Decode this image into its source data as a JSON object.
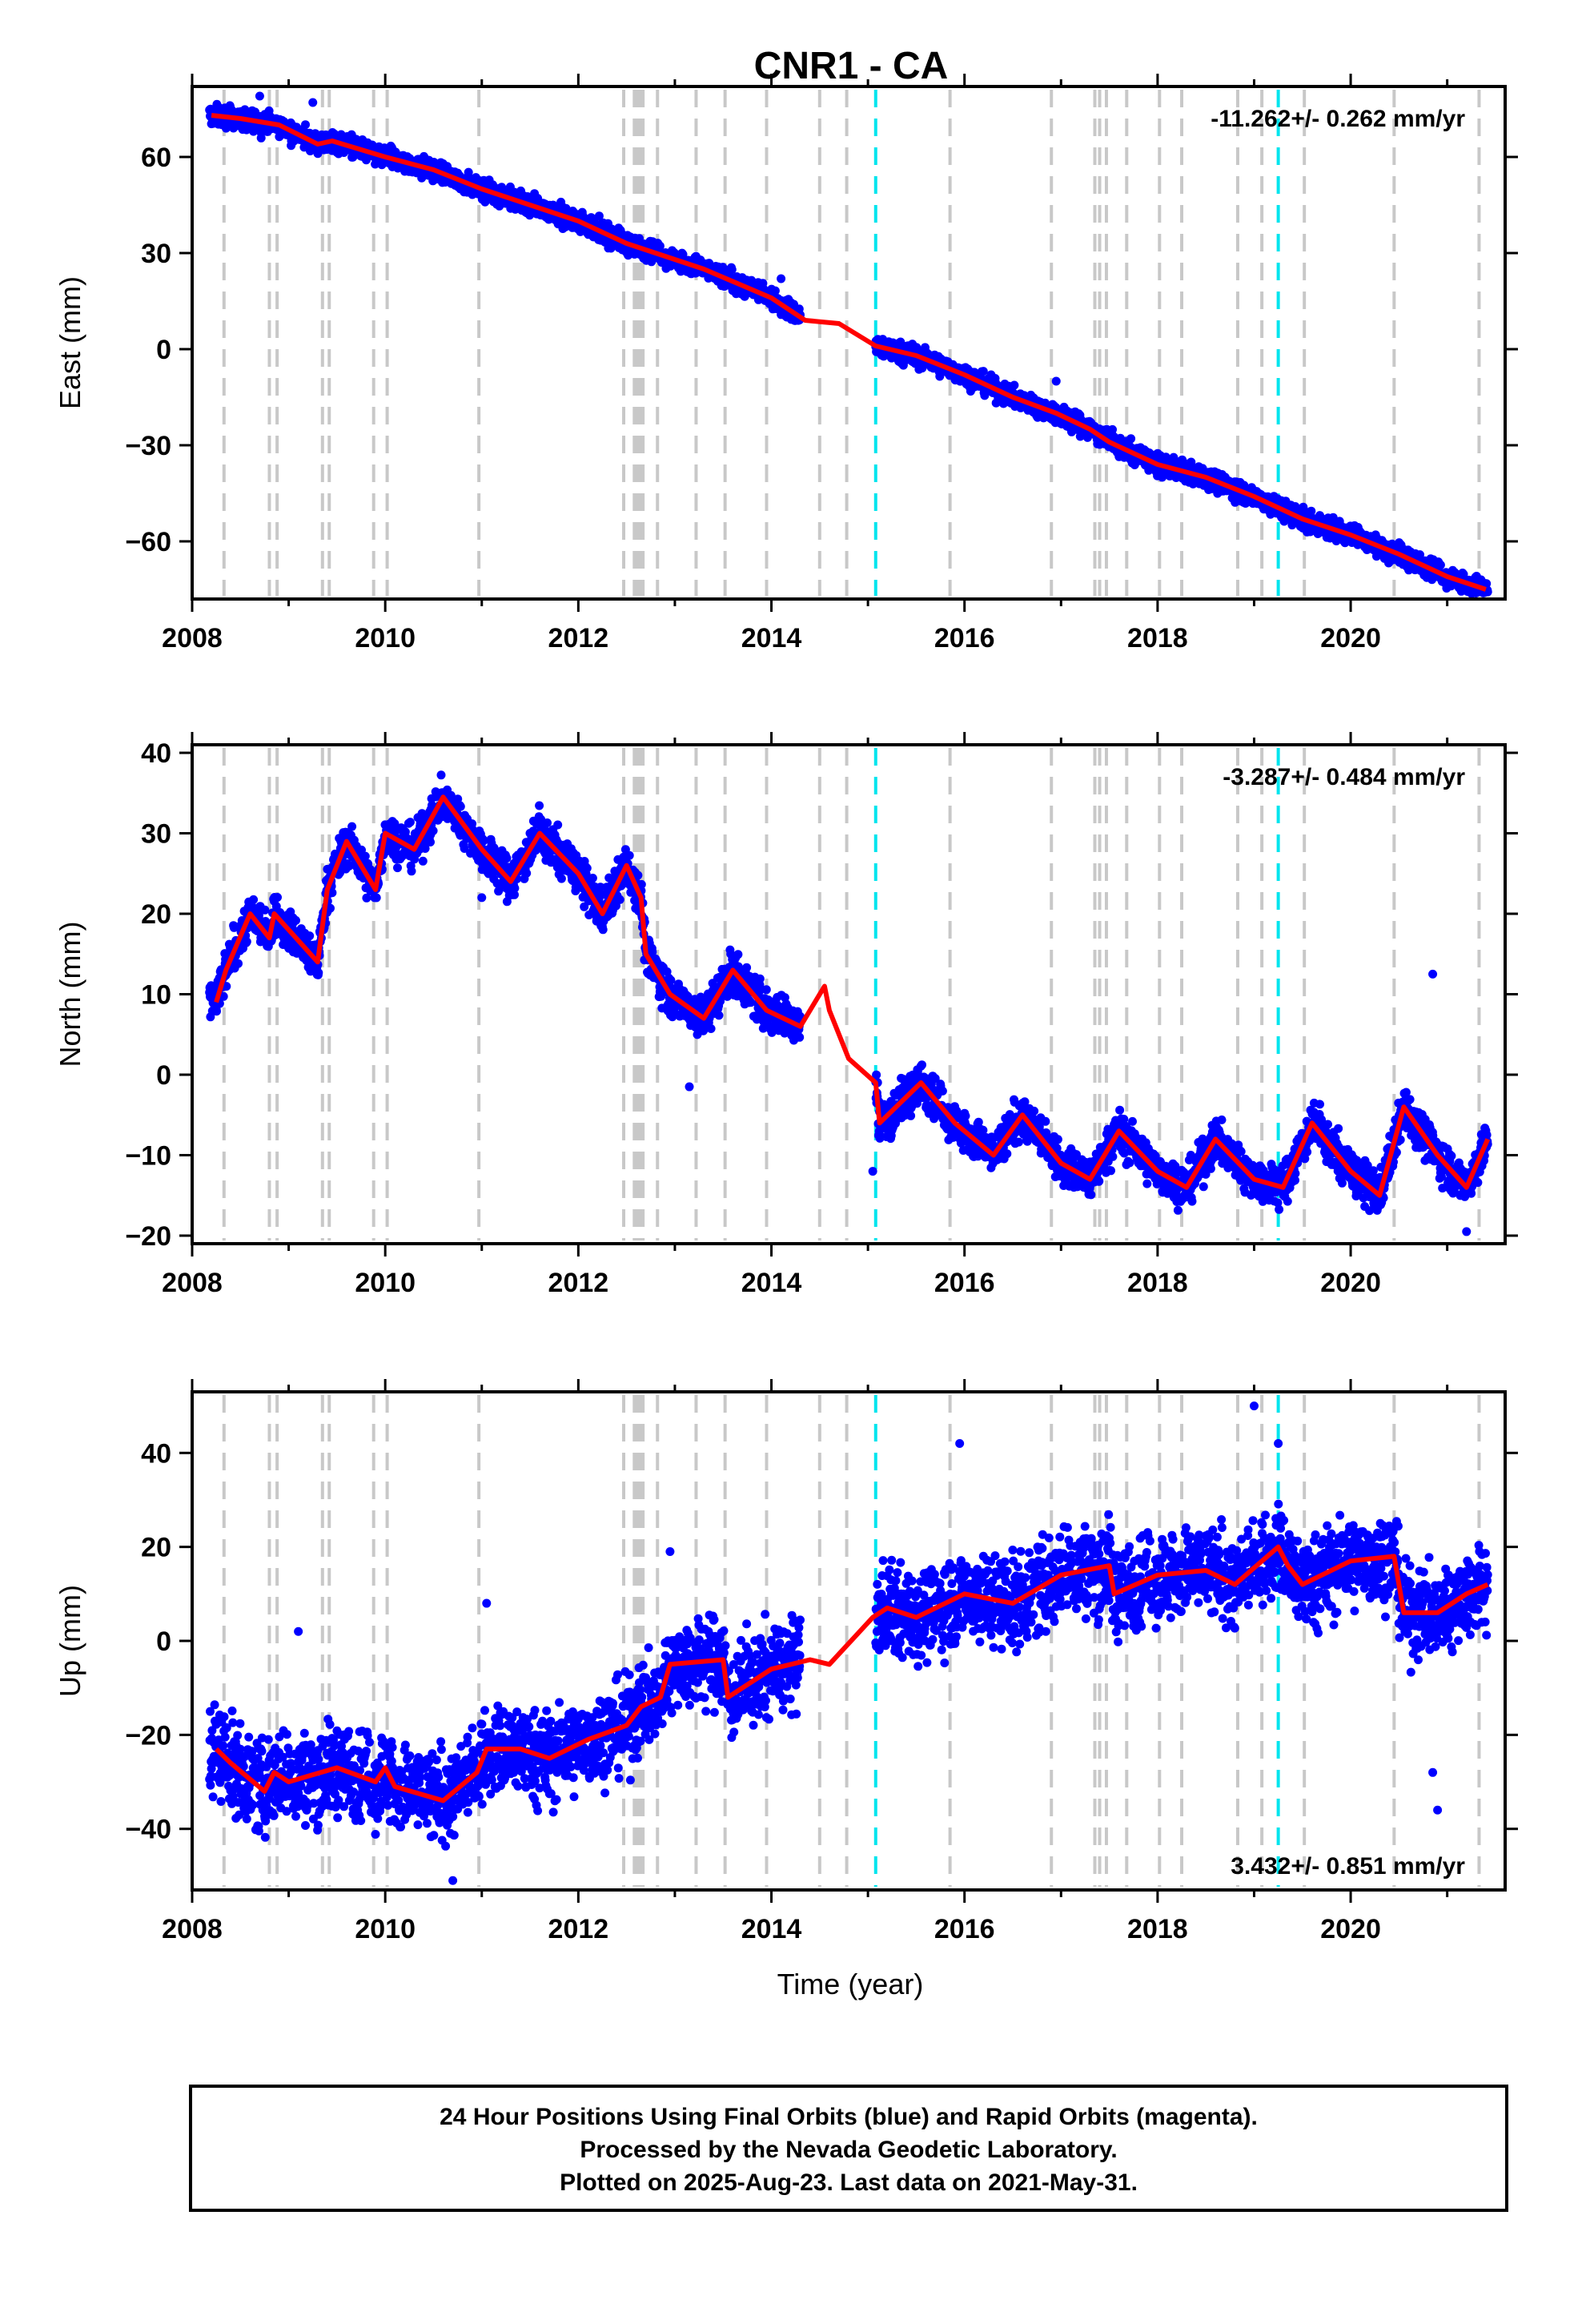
{
  "chart_data": {
    "type": "scatter",
    "title": "CNR1 - CA",
    "xlabel": "Time (year)",
    "xlim": [
      2008,
      2021.6
    ],
    "x_ticks": [
      2008,
      2010,
      2012,
      2014,
      2016,
      2018,
      2020
    ],
    "x_tick_labels": [
      "2008",
      "2010",
      "2012",
      "2014",
      "2016",
      "2018",
      "2020"
    ],
    "colors": {
      "points": "#0000ff",
      "model": "#ff0000",
      "event_line": "#c8c8c8",
      "antenna_line": "#00e5ee"
    },
    "event_lines": [
      2008.33,
      2008.8,
      2008.88,
      2009.35,
      2009.42,
      2009.88,
      2010.02,
      2010.97,
      2012.47,
      2012.58,
      2012.6,
      2012.62,
      2012.64,
      2012.67,
      2012.82,
      2013.22,
      2013.52,
      2013.95,
      2014.5,
      2014.78,
      2015.85,
      2016.9,
      2017.35,
      2017.4,
      2017.47,
      2017.68,
      2018.02,
      2018.25,
      2018.83,
      2019.08,
      2019.52,
      2020.45,
      2021.33
    ],
    "antenna_lines": [
      2015.08,
      2019.25
    ],
    "panels": [
      {
        "name": "East",
        "ylabel": "East (mm)",
        "ylim": [
          -78,
          82
        ],
        "y_ticks": [
          60,
          30,
          0,
          -30,
          -60
        ],
        "y_tick_labels": [
          "60",
          "30",
          "0",
          "−30",
          "−60"
        ],
        "rate": "-11.262+/- 0.262 mm/yr",
        "rate_position": "top-right",
        "noise": 1.6,
        "outliers": [
          [
            2008.7,
            79
          ],
          [
            2009.25,
            77
          ],
          [
            2016.95,
            -10
          ],
          [
            2014.1,
            22
          ]
        ],
        "model": [
          [
            2008.2,
            73
          ],
          [
            2008.5,
            72
          ],
          [
            2008.9,
            70
          ],
          [
            2009.3,
            64
          ],
          [
            2009.45,
            65
          ],
          [
            2010,
            60
          ],
          [
            2010.5,
            56
          ],
          [
            2011,
            50
          ],
          [
            2011.5,
            45
          ],
          [
            2012,
            40
          ],
          [
            2012.5,
            33
          ],
          [
            2012.8,
            30
          ],
          [
            2013.3,
            25
          ],
          [
            2014,
            16
          ],
          [
            2014.35,
            9
          ],
          [
            2014.7,
            8
          ],
          [
            2015.08,
            1
          ],
          [
            2015.5,
            -2
          ],
          [
            2016,
            -8
          ],
          [
            2016.5,
            -15
          ],
          [
            2016.95,
            -20
          ],
          [
            2017.3,
            -25
          ],
          [
            2017.5,
            -29
          ],
          [
            2018,
            -36
          ],
          [
            2018.5,
            -40
          ],
          [
            2019,
            -46
          ],
          [
            2019.5,
            -53
          ],
          [
            2020,
            -58
          ],
          [
            2020.5,
            -64
          ],
          [
            2021,
            -71
          ],
          [
            2021.4,
            -75
          ]
        ]
      },
      {
        "name": "North",
        "ylabel": "North (mm)",
        "ylim": [
          -21,
          41
        ],
        "y_ticks": [
          40,
          30,
          20,
          10,
          0,
          -10,
          -20
        ],
        "y_tick_labels": [
          "40",
          "30",
          "20",
          "10",
          "0",
          "−10",
          "−20"
        ],
        "rate": "-3.287+/- 0.484 mm/yr",
        "rate_position": "top-right",
        "noise": 1.3,
        "outliers": [
          [
            2020.85,
            12.5
          ],
          [
            2013.15,
            -1.5
          ],
          [
            2015.05,
            -12
          ],
          [
            2021.2,
            -19.5
          ],
          [
            2011.0,
            22
          ]
        ],
        "model": [
          [
            2008.25,
            9
          ],
          [
            2008.35,
            13
          ],
          [
            2008.6,
            20
          ],
          [
            2008.8,
            17
          ],
          [
            2008.85,
            20
          ],
          [
            2009.3,
            14
          ],
          [
            2009.4,
            23
          ],
          [
            2009.6,
            29
          ],
          [
            2009.9,
            23
          ],
          [
            2010.0,
            30
          ],
          [
            2010.3,
            28
          ],
          [
            2010.6,
            34.5
          ],
          [
            2011.0,
            28
          ],
          [
            2011.3,
            24
          ],
          [
            2011.6,
            30
          ],
          [
            2012.0,
            25
          ],
          [
            2012.25,
            20
          ],
          [
            2012.5,
            26
          ],
          [
            2012.65,
            22
          ],
          [
            2012.7,
            15
          ],
          [
            2012.95,
            10
          ],
          [
            2013.3,
            7
          ],
          [
            2013.6,
            13
          ],
          [
            2013.95,
            8
          ],
          [
            2014.3,
            6
          ],
          [
            2014.55,
            11
          ],
          [
            2014.6,
            8
          ],
          [
            2014.8,
            2
          ],
          [
            2015.08,
            -1
          ],
          [
            2015.12,
            -6
          ],
          [
            2015.55,
            -1
          ],
          [
            2015.9,
            -6
          ],
          [
            2016.3,
            -10
          ],
          [
            2016.6,
            -5
          ],
          [
            2017.0,
            -11
          ],
          [
            2017.3,
            -13
          ],
          [
            2017.6,
            -7
          ],
          [
            2018.0,
            -12
          ],
          [
            2018.3,
            -14
          ],
          [
            2018.6,
            -8
          ],
          [
            2019.0,
            -13
          ],
          [
            2019.3,
            -14
          ],
          [
            2019.6,
            -6
          ],
          [
            2020.0,
            -12
          ],
          [
            2020.3,
            -15
          ],
          [
            2020.55,
            -4
          ],
          [
            2020.9,
            -10
          ],
          [
            2021.2,
            -14
          ],
          [
            2021.42,
            -8
          ]
        ]
      },
      {
        "name": "Up",
        "ylabel": "Up (mm)",
        "ylim": [
          -53,
          53
        ],
        "y_ticks": [
          40,
          20,
          0,
          -20,
          -40
        ],
        "y_tick_labels": [
          "40",
          "20",
          "0",
          "−20",
          "−40"
        ],
        "rate": "3.432+/- 0.851 mm/yr",
        "rate_position": "bottom-right",
        "noise": 4.8,
        "outliers": [
          [
            2019.0,
            50
          ],
          [
            2019.25,
            42
          ],
          [
            2015.95,
            42
          ],
          [
            2010.7,
            -51
          ],
          [
            2011.05,
            8
          ],
          [
            2020.9,
            -36
          ],
          [
            2020.85,
            -28
          ],
          [
            2009.1,
            2
          ],
          [
            2012.95,
            19
          ]
        ],
        "model": [
          [
            2008.25,
            -23
          ],
          [
            2008.4,
            -26
          ],
          [
            2008.75,
            -32
          ],
          [
            2008.85,
            -28
          ],
          [
            2009.0,
            -30
          ],
          [
            2009.5,
            -27
          ],
          [
            2009.9,
            -30
          ],
          [
            2010.0,
            -27
          ],
          [
            2010.1,
            -31
          ],
          [
            2010.6,
            -34
          ],
          [
            2010.95,
            -28
          ],
          [
            2011.05,
            -23
          ],
          [
            2011.4,
            -23
          ],
          [
            2011.7,
            -25
          ],
          [
            2012.1,
            -21
          ],
          [
            2012.5,
            -18
          ],
          [
            2012.65,
            -14
          ],
          [
            2012.85,
            -12
          ],
          [
            2012.95,
            -5
          ],
          [
            2013.5,
            -4
          ],
          [
            2013.55,
            -12
          ],
          [
            2014.0,
            -6
          ],
          [
            2014.4,
            -4
          ],
          [
            2014.6,
            -5
          ],
          [
            2015.05,
            5
          ],
          [
            2015.2,
            7
          ],
          [
            2015.5,
            5
          ],
          [
            2016.0,
            10
          ],
          [
            2016.5,
            8
          ],
          [
            2017.0,
            14
          ],
          [
            2017.5,
            16
          ],
          [
            2017.55,
            10
          ],
          [
            2018.0,
            14
          ],
          [
            2018.5,
            15
          ],
          [
            2018.8,
            12
          ],
          [
            2019.25,
            20
          ],
          [
            2019.35,
            16
          ],
          [
            2019.5,
            12
          ],
          [
            2020.0,
            17
          ],
          [
            2020.45,
            18
          ],
          [
            2020.55,
            6
          ],
          [
            2020.9,
            6
          ],
          [
            2021.2,
            10
          ],
          [
            2021.42,
            12
          ]
        ]
      }
    ]
  },
  "footer": {
    "line1": "24 Hour Positions Using Final Orbits (blue) and Rapid Orbits (magenta).",
    "line2": "Processed by the Nevada Geodetic Laboratory.",
    "line3": "Plotted on 2025-Aug-23. Last data on 2021-May-31."
  }
}
